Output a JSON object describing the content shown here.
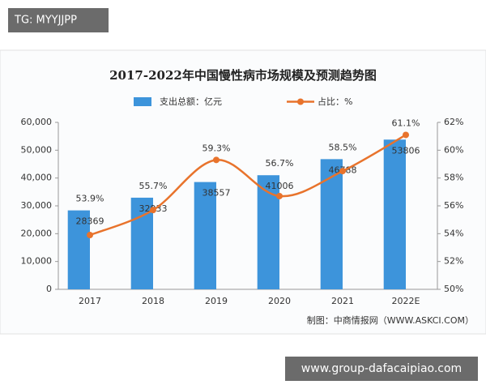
{
  "badge": "TG: MYYJJPP",
  "footer": "www.group-dafacaipiao.com",
  "chart_data": {
    "type": "combo",
    "title": "2017-2022年中国慢性病市场规模及预测趋势图",
    "source": "制图：中商情报网（WWW.ASKCI.COM）",
    "categories": [
      "2017",
      "2018",
      "2019",
      "2020",
      "2021",
      "2022E"
    ],
    "series": [
      {
        "name": "支出总额：亿元",
        "type": "bar",
        "color": "#3d94db",
        "values": [
          28369,
          32933,
          38557,
          41006,
          46788,
          53806
        ]
      },
      {
        "name": "占比：%",
        "type": "line",
        "axis": "y2",
        "color": "#e8732c",
        "values": [
          53.9,
          55.7,
          59.3,
          56.7,
          58.5,
          61.1
        ],
        "value_labels": [
          "53.9%",
          "55.7%",
          "59.3%",
          "56.7%",
          "58.5%",
          "61.1%"
        ]
      }
    ],
    "ylim": [
      0,
      60000
    ],
    "yticks": [
      0,
      {
        "value": 10000,
        "label": "10,000"
      },
      {
        "value": 20000,
        "label": "20,000"
      },
      {
        "value": 30000,
        "label": "30,000"
      },
      {
        "value": 40000,
        "label": "40,000"
      },
      {
        "value": 50000,
        "label": "50,000"
      },
      {
        "value": 60000,
        "label": "60,000"
      }
    ],
    "y2lim": [
      50,
      62
    ],
    "y2ticks": [
      {
        "value": 50,
        "label": "50%"
      },
      {
        "value": 52,
        "label": "52%"
      },
      {
        "value": 54,
        "label": "54%"
      },
      {
        "value": 56,
        "label": "56%"
      },
      {
        "value": 58,
        "label": "58%"
      },
      {
        "value": 60,
        "label": "60%"
      },
      {
        "value": 62,
        "label": "62%"
      }
    ]
  }
}
